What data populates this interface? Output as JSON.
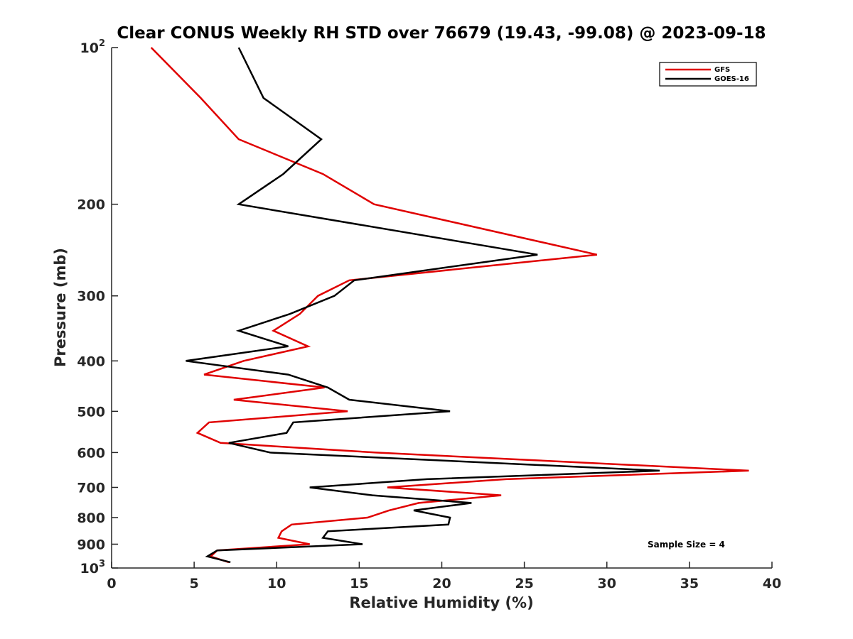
{
  "chart_data": {
    "type": "line",
    "title": "Clear CONUS Weekly RH STD over 76679 (19.43, -99.08) @ 2023-09-18",
    "xlabel": "Relative Humidity (%)",
    "ylabel": "Pressure (mb)",
    "xlim": [
      0,
      40
    ],
    "ylim": [
      100,
      1000
    ],
    "y_scale": "log",
    "y_reversed": true,
    "x_ticks": [
      "0",
      "5",
      "10",
      "15",
      "20",
      "25",
      "30",
      "35",
      "40"
    ],
    "y_ticks": [
      {
        "value": 100,
        "base": "10",
        "exp": "2"
      },
      {
        "value": 200,
        "label": "200"
      },
      {
        "value": 300,
        "label": "300"
      },
      {
        "value": 400,
        "label": "400"
      },
      {
        "value": 500,
        "label": "500"
      },
      {
        "value": 600,
        "label": "600"
      },
      {
        "value": 700,
        "label": "700"
      },
      {
        "value": 800,
        "label": "800"
      },
      {
        "value": 900,
        "label": "900"
      },
      {
        "value": 1000,
        "base": "10",
        "exp": "3"
      }
    ],
    "legend_position": "top-right",
    "annotation": "Sample Size = 4",
    "series": [
      {
        "name": "GFS",
        "color": "#e00000",
        "points": [
          [
            2.4,
            100
          ],
          [
            5.4,
            125
          ],
          [
            7.7,
            150
          ],
          [
            12.8,
            175
          ],
          [
            15.9,
            200
          ],
          [
            29.4,
            250
          ],
          [
            14.4,
            280
          ],
          [
            12.5,
            300
          ],
          [
            11.4,
            325
          ],
          [
            9.8,
            350
          ],
          [
            11.9,
            375
          ],
          [
            8.0,
            400
          ],
          [
            5.6,
            425
          ],
          [
            12.9,
            450
          ],
          [
            7.4,
            475
          ],
          [
            14.3,
            500
          ],
          [
            5.9,
            525
          ],
          [
            5.2,
            550
          ],
          [
            6.6,
            575
          ],
          [
            16.0,
            600
          ],
          [
            38.6,
            650
          ],
          [
            23.9,
            675
          ],
          [
            16.7,
            700
          ],
          [
            23.6,
            725
          ],
          [
            18.6,
            750
          ],
          [
            16.8,
            775
          ],
          [
            15.5,
            800
          ],
          [
            10.9,
            825
          ],
          [
            10.3,
            850
          ],
          [
            10.1,
            875
          ],
          [
            12.0,
            900
          ],
          [
            6.4,
            925
          ],
          [
            6.0,
            950
          ],
          [
            7.1,
            975
          ]
        ]
      },
      {
        "name": "GOES-16",
        "color": "#000000",
        "points": [
          [
            7.7,
            100
          ],
          [
            9.2,
            125
          ],
          [
            12.7,
            150
          ],
          [
            10.4,
            175
          ],
          [
            7.7,
            200
          ],
          [
            25.8,
            250
          ],
          [
            14.7,
            280
          ],
          [
            13.5,
            300
          ],
          [
            10.8,
            325
          ],
          [
            7.7,
            350
          ],
          [
            10.7,
            375
          ],
          [
            4.5,
            400
          ],
          [
            10.7,
            425
          ],
          [
            13.1,
            450
          ],
          [
            14.4,
            475
          ],
          [
            20.5,
            500
          ],
          [
            11.0,
            525
          ],
          [
            10.6,
            550
          ],
          [
            7.1,
            575
          ],
          [
            9.6,
            600
          ],
          [
            33.2,
            650
          ],
          [
            19.1,
            675
          ],
          [
            12.0,
            700
          ],
          [
            15.8,
            725
          ],
          [
            21.8,
            750
          ],
          [
            18.3,
            775
          ],
          [
            20.5,
            800
          ],
          [
            20.4,
            825
          ],
          [
            13.1,
            850
          ],
          [
            12.8,
            875
          ],
          [
            15.2,
            900
          ],
          [
            6.4,
            925
          ],
          [
            5.8,
            950
          ],
          [
            7.2,
            975
          ]
        ]
      }
    ]
  }
}
